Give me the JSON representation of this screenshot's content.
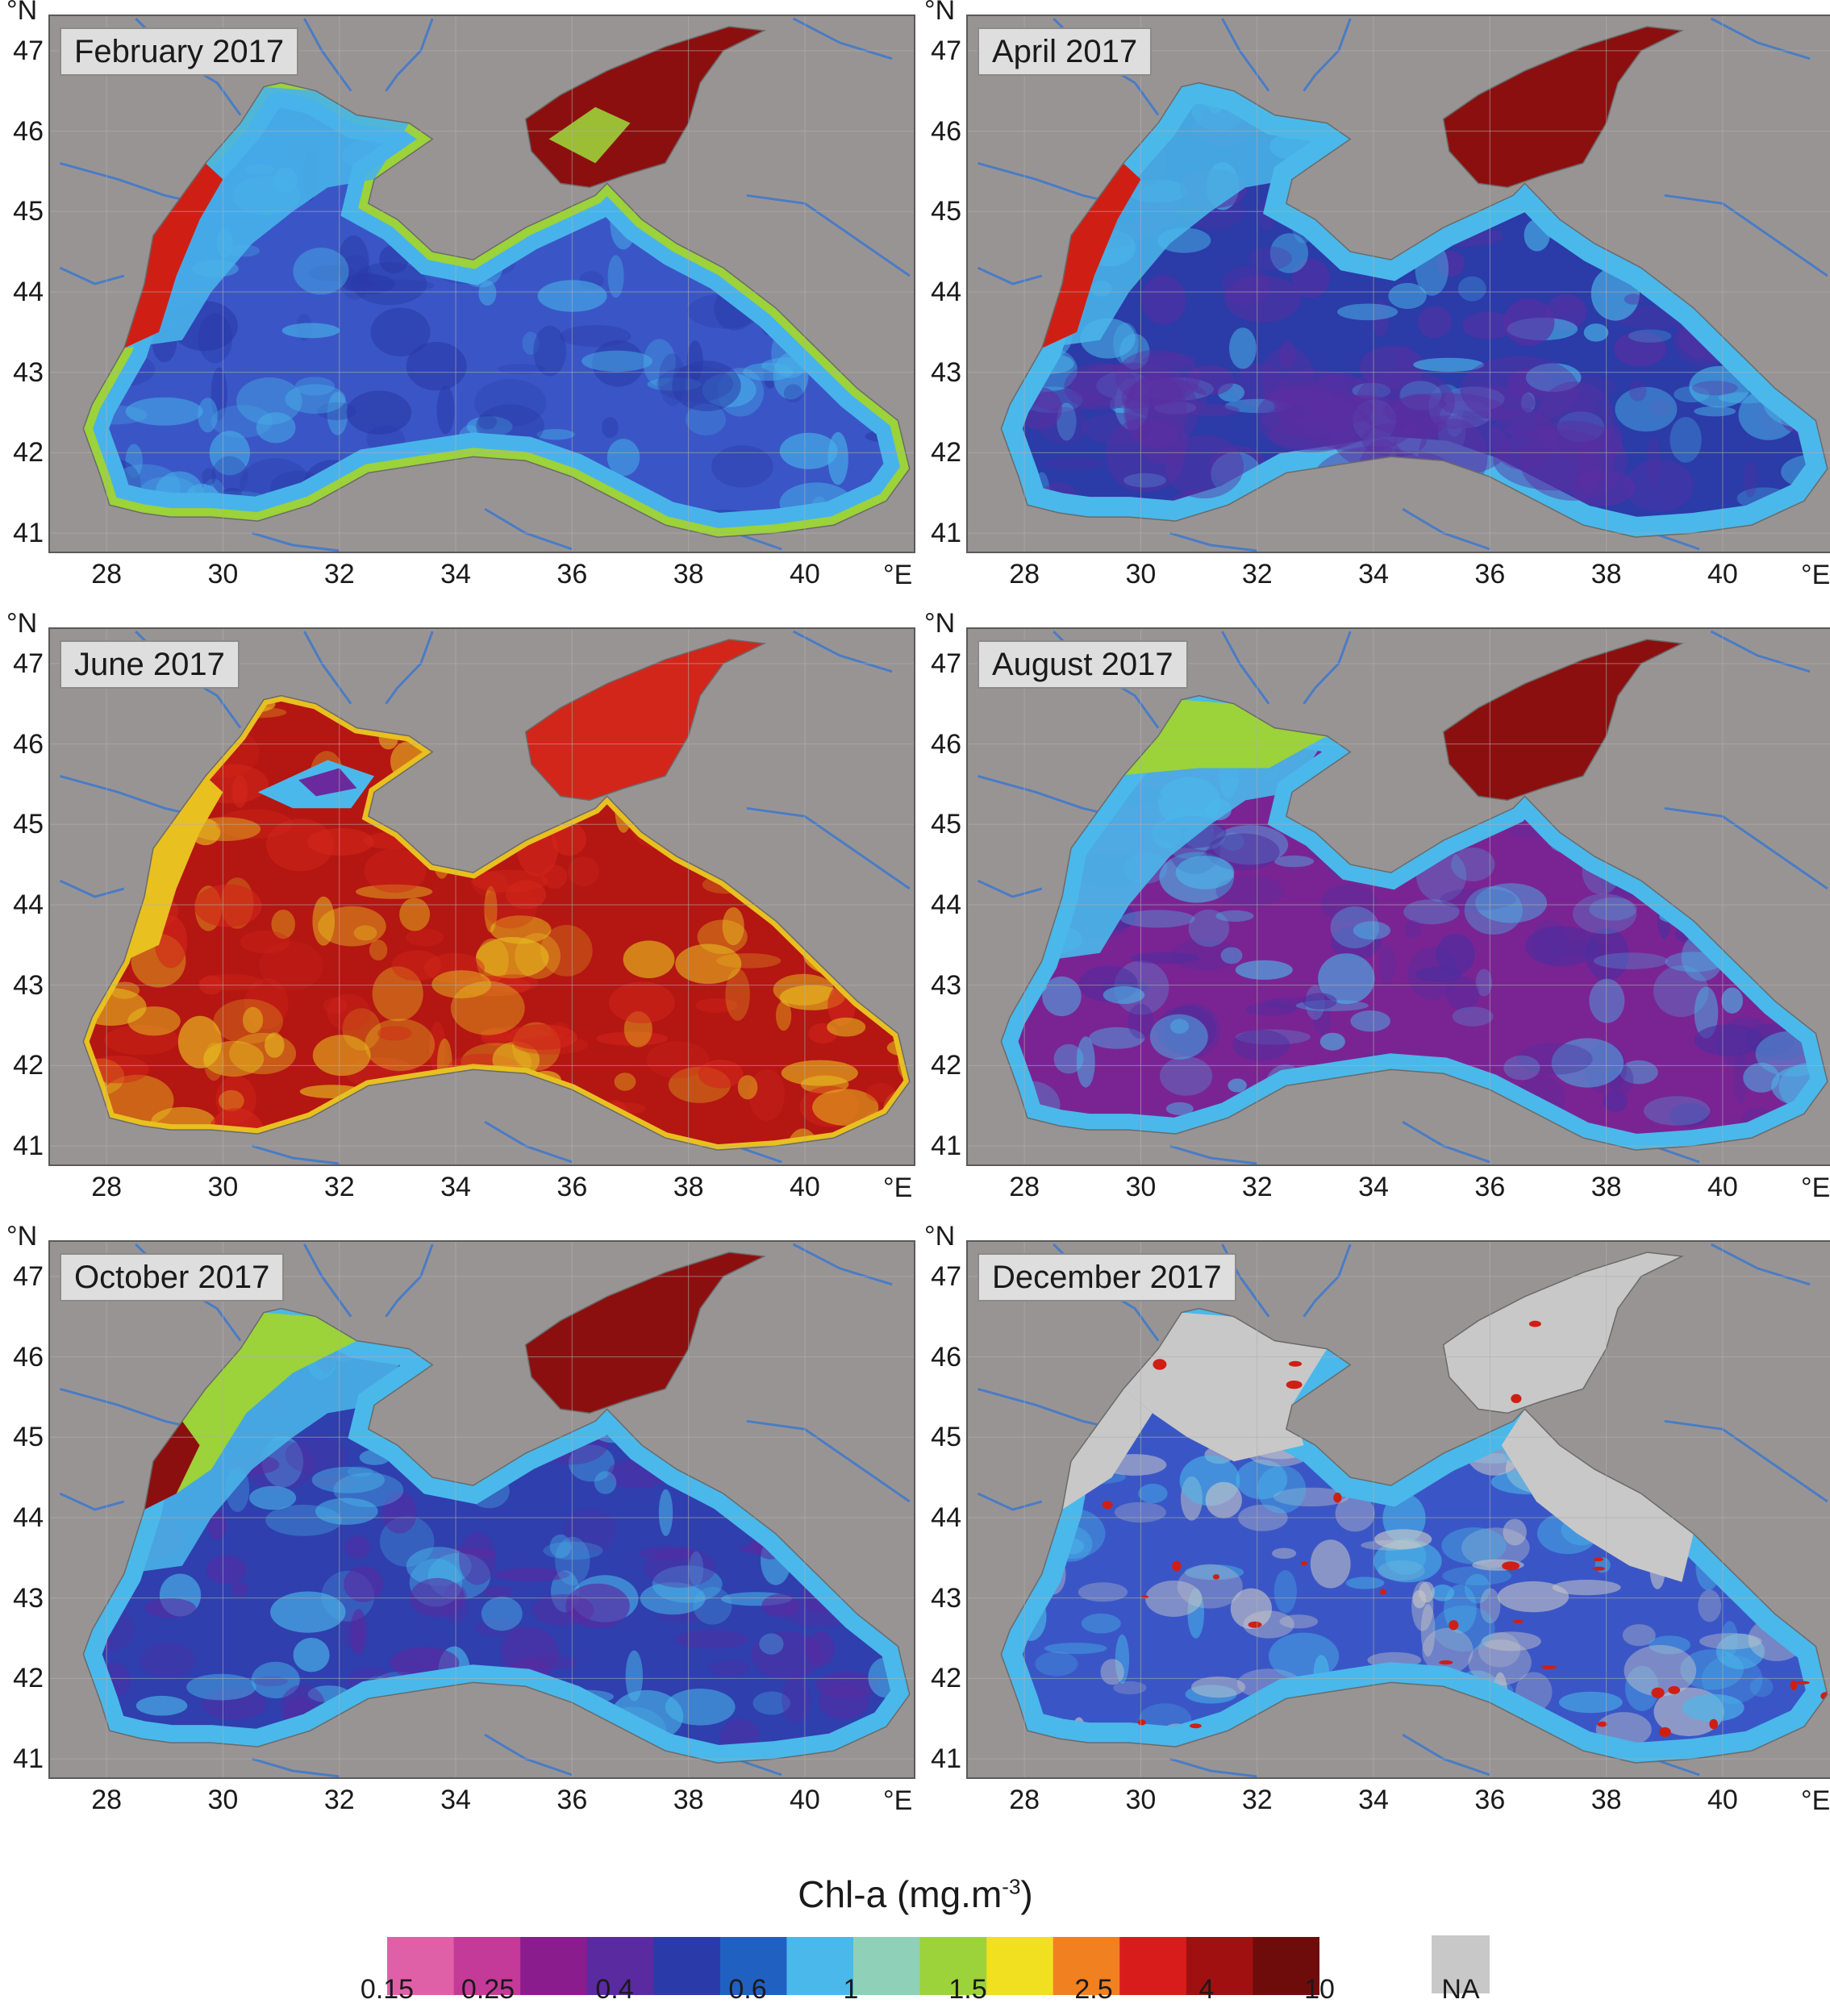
{
  "panels": [
    {
      "title": "February 2017",
      "scheme": "feb",
      "palette": [
        "#3a56c6",
        "#2a3aa8",
        "#48b3ea",
        "#9cd23a",
        "#cf1f14",
        "#8c0f0f",
        "#7a2a9a"
      ]
    },
    {
      "title": "April 2017",
      "scheme": "apr",
      "palette": [
        "#2b3ba8",
        "#5b2ea2",
        "#4ab8ea",
        "#cf1f14",
        "#8c0f0f"
      ]
    },
    {
      "title": "June 2017",
      "scheme": "jun",
      "palette": [
        "#b41612",
        "#d2261a",
        "#e8c020",
        "#4ab8ea",
        "#6a2a9e"
      ]
    },
    {
      "title": "August 2017",
      "scheme": "aug",
      "palette": [
        "#7a2494",
        "#4b2e9e",
        "#4ab8ea",
        "#9cd23a",
        "#8c0f0f"
      ]
    },
    {
      "title": "October 2017",
      "scheme": "oct",
      "palette": [
        "#2f3fae",
        "#5a2aa0",
        "#4ab8ea",
        "#9cd23a",
        "#8c0f0f"
      ]
    },
    {
      "title": "December 2017",
      "scheme": "dec",
      "palette": [
        "#3a56c6",
        "#4ab8ea",
        "#c8c8c8",
        "#cf1f14",
        "#9cd23a"
      ]
    }
  ],
  "axes": {
    "lat_unit": "°N",
    "lon_unit": "°E",
    "lat_ticks": [
      "47",
      "46",
      "45",
      "44",
      "43",
      "42",
      "41"
    ],
    "lon_ticks": [
      "28",
      "30",
      "32",
      "34",
      "36",
      "38",
      "40"
    ]
  },
  "legend": {
    "title": "Chl-a (mg.m",
    "title_sup": "-3",
    "title_close": ")",
    "ticks": [
      "0.15",
      "0.25",
      "0.4",
      "0.6",
      "1",
      "1.5",
      "2.5",
      "4",
      "10"
    ],
    "na_label": "NA",
    "colors": [
      "#e060a8",
      "#c43a98",
      "#8a1c8e",
      "#5a2aa0",
      "#2a3aa8",
      "#2060c0",
      "#4ab8ea",
      "#8ed0b8",
      "#9cd23a",
      "#f0e020",
      "#f08020",
      "#d81c1c",
      "#a01010",
      "#6e0c0c"
    ],
    "na_color": "#c8c8c8"
  },
  "colors": {
    "land": "#999494",
    "river": "#4a7cc4",
    "grid": "#b0b0b0"
  }
}
